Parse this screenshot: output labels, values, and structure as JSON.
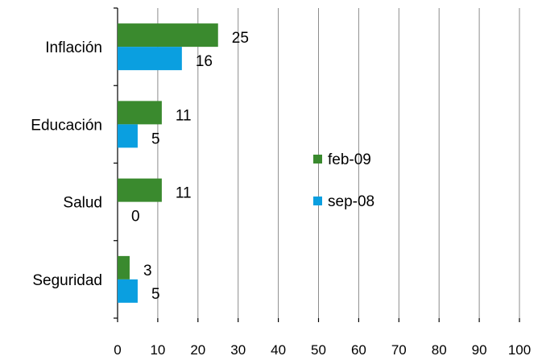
{
  "chart_data": {
    "type": "bar",
    "orientation": "horizontal",
    "categories": [
      "Inflación",
      "Educación",
      "Salud",
      "Seguridad"
    ],
    "series": [
      {
        "name": "feb-09",
        "values": [
          25,
          11,
          11,
          3
        ],
        "color": "#3a8a2e"
      },
      {
        "name": "sep-08",
        "values": [
          16,
          5,
          0,
          5
        ],
        "color": "#0a9fe0"
      }
    ],
    "xlim": [
      0,
      100
    ],
    "xticks": [
      0,
      10,
      20,
      30,
      40,
      50,
      60,
      70,
      80,
      90,
      100
    ],
    "grid": true,
    "legend_position": "center-right",
    "title": "",
    "xlabel": "",
    "ylabel": ""
  }
}
